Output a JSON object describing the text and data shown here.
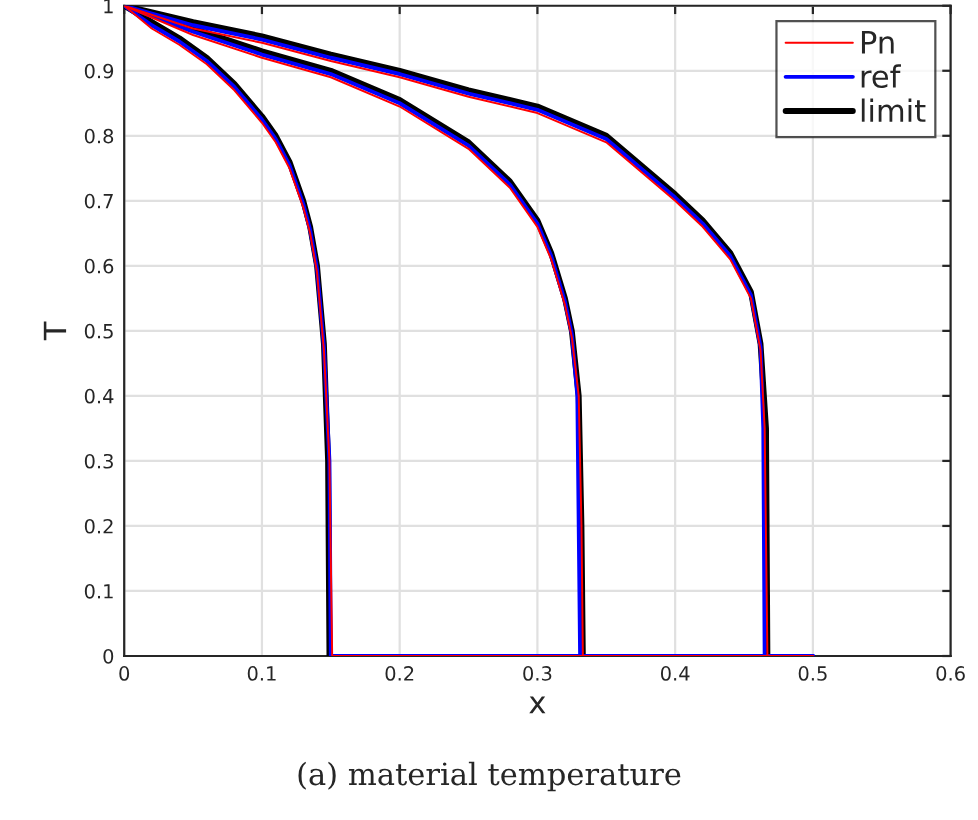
{
  "chart_data": {
    "type": "line",
    "xlabel": "x",
    "ylabel": "T",
    "annotations": [
      "(a) material temperature"
    ],
    "xlim": [
      0,
      0.6
    ],
    "xticks": [
      0,
      0.1,
      0.2,
      0.3,
      0.4,
      0.5,
      0.6
    ],
    "ylim": [
      0,
      1
    ],
    "yticks": [
      0,
      0.1,
      0.2,
      0.3,
      0.4,
      0.5,
      0.6,
      0.7,
      0.8,
      0.9,
      1
    ],
    "grid": true,
    "legend": "top right",
    "marker": "none",
    "line_style": "solid",
    "series": [
      {
        "name": "Pn",
        "color": "#ff0000",
        "x": [
          0,
          0.02,
          0.04,
          0.06,
          0.08,
          0.1,
          0.11,
          0.12,
          0.13,
          0.135,
          0.14,
          0.145,
          0.149,
          0.151,
          0.5
        ],
        "values": [
          1,
          0.965,
          0.94,
          0.91,
          0.87,
          0.82,
          0.79,
          0.75,
          0.69,
          0.65,
          0.59,
          0.47,
          0.3,
          0,
          0
        ]
      },
      {
        "color": "#ff0000",
        "x": [
          0,
          0.05,
          0.1,
          0.15,
          0.2,
          0.25,
          0.28,
          0.3,
          0.31,
          0.32,
          0.325,
          0.33,
          0.332,
          0.333,
          0.5
        ],
        "values": [
          1,
          0.955,
          0.92,
          0.89,
          0.845,
          0.78,
          0.72,
          0.66,
          0.61,
          0.54,
          0.49,
          0.4,
          0.2,
          0,
          0
        ]
      },
      {
        "color": "#ff0000",
        "x": [
          0,
          0.05,
          0.1,
          0.15,
          0.2,
          0.25,
          0.3,
          0.35,
          0.4,
          0.42,
          0.44,
          0.455,
          0.462,
          0.465,
          0.467,
          0.5
        ],
        "values": [
          1,
          0.965,
          0.943,
          0.915,
          0.89,
          0.86,
          0.835,
          0.79,
          0.7,
          0.66,
          0.61,
          0.55,
          0.47,
          0.35,
          0,
          0
        ]
      },
      {
        "name": "ref",
        "color": "#0000ff",
        "x": [
          0,
          0.02,
          0.04,
          0.06,
          0.08,
          0.1,
          0.11,
          0.12,
          0.13,
          0.135,
          0.14,
          0.145,
          0.149,
          0.15,
          0.5
        ],
        "values": [
          1,
          0.97,
          0.945,
          0.915,
          0.875,
          0.825,
          0.795,
          0.755,
          0.695,
          0.655,
          0.595,
          0.475,
          0.3,
          0,
          0
        ]
      },
      {
        "color": "#0000ff",
        "x": [
          0,
          0.05,
          0.1,
          0.15,
          0.2,
          0.25,
          0.28,
          0.3,
          0.31,
          0.32,
          0.325,
          0.329,
          0.33,
          0.331,
          0.5
        ],
        "values": [
          1,
          0.96,
          0.925,
          0.895,
          0.85,
          0.785,
          0.725,
          0.665,
          0.615,
          0.545,
          0.495,
          0.4,
          0.2,
          0,
          0
        ]
      },
      {
        "color": "#0000ff",
        "x": [
          0,
          0.05,
          0.1,
          0.15,
          0.2,
          0.25,
          0.3,
          0.35,
          0.4,
          0.42,
          0.44,
          0.455,
          0.462,
          0.464,
          0.465,
          0.5
        ],
        "values": [
          1,
          0.97,
          0.948,
          0.92,
          0.895,
          0.865,
          0.84,
          0.795,
          0.705,
          0.665,
          0.615,
          0.555,
          0.475,
          0.35,
          0,
          0
        ]
      },
      {
        "name": "limit",
        "color": "#000000",
        "x": [
          0,
          0.02,
          0.04,
          0.06,
          0.08,
          0.1,
          0.11,
          0.12,
          0.13,
          0.135,
          0.14,
          0.145,
          0.148,
          0.149
        ],
        "values": [
          1,
          0.975,
          0.95,
          0.92,
          0.88,
          0.83,
          0.8,
          0.76,
          0.7,
          0.66,
          0.6,
          0.48,
          0.3,
          0
        ]
      },
      {
        "color": "#000000",
        "x": [
          0,
          0.05,
          0.1,
          0.15,
          0.2,
          0.25,
          0.28,
          0.3,
          0.31,
          0.32,
          0.325,
          0.33,
          0.332,
          0.333
        ],
        "values": [
          1,
          0.965,
          0.93,
          0.9,
          0.855,
          0.79,
          0.73,
          0.67,
          0.62,
          0.55,
          0.5,
          0.4,
          0.2,
          0
        ]
      },
      {
        "color": "#000000",
        "x": [
          0,
          0.05,
          0.1,
          0.15,
          0.2,
          0.25,
          0.3,
          0.35,
          0.4,
          0.42,
          0.44,
          0.455,
          0.462,
          0.466,
          0.467
        ],
        "values": [
          1,
          0.975,
          0.953,
          0.925,
          0.9,
          0.87,
          0.845,
          0.8,
          0.71,
          0.67,
          0.62,
          0.56,
          0.48,
          0.35,
          0
        ]
      }
    ]
  }
}
